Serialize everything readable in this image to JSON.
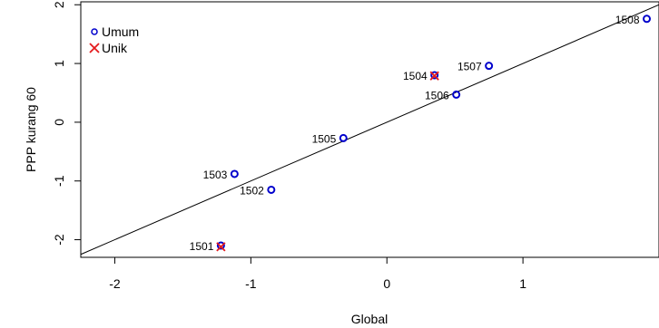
{
  "chart_data": {
    "type": "scatter",
    "title": "",
    "xlabel": "Global",
    "ylabel": "PPP kurang 60",
    "xlim": [
      -2.25,
      2.0
    ],
    "ylim": [
      -2.3,
      2.05
    ],
    "x_ticks": [
      -2,
      -1,
      0,
      1
    ],
    "y_ticks": [
      -2,
      -1,
      0,
      1,
      2
    ],
    "grid": false,
    "legend": {
      "position": "top-left",
      "entries": [
        {
          "label": "Umum",
          "marker": "circle",
          "color": "#0000cc"
        },
        {
          "label": "Unik",
          "marker": "x",
          "color": "#e41a1c"
        }
      ]
    },
    "reference_line": {
      "slope": 1,
      "intercept": 0
    },
    "series": [
      {
        "name": "Umum",
        "marker": "circle",
        "color": "#0000cc",
        "points": [
          {
            "label": "1501",
            "x": -1.22,
            "y": -2.1
          },
          {
            "label": "1502",
            "x": -0.85,
            "y": -1.15
          },
          {
            "label": "1503",
            "x": -1.12,
            "y": -0.88
          },
          {
            "label": "1504",
            "x": 0.35,
            "y": 0.8
          },
          {
            "label": "1505",
            "x": -0.32,
            "y": -0.27
          },
          {
            "label": "1506",
            "x": 0.51,
            "y": 0.47
          },
          {
            "label": "1507",
            "x": 0.75,
            "y": 0.96
          },
          {
            "label": "1508",
            "x": 1.91,
            "y": 1.76
          }
        ]
      },
      {
        "name": "Unik",
        "marker": "x",
        "color": "#e41a1c",
        "points": [
          {
            "label": "1501",
            "x": -1.22,
            "y": -2.12
          },
          {
            "label": "1504",
            "x": 0.35,
            "y": 0.79
          }
        ]
      }
    ]
  }
}
